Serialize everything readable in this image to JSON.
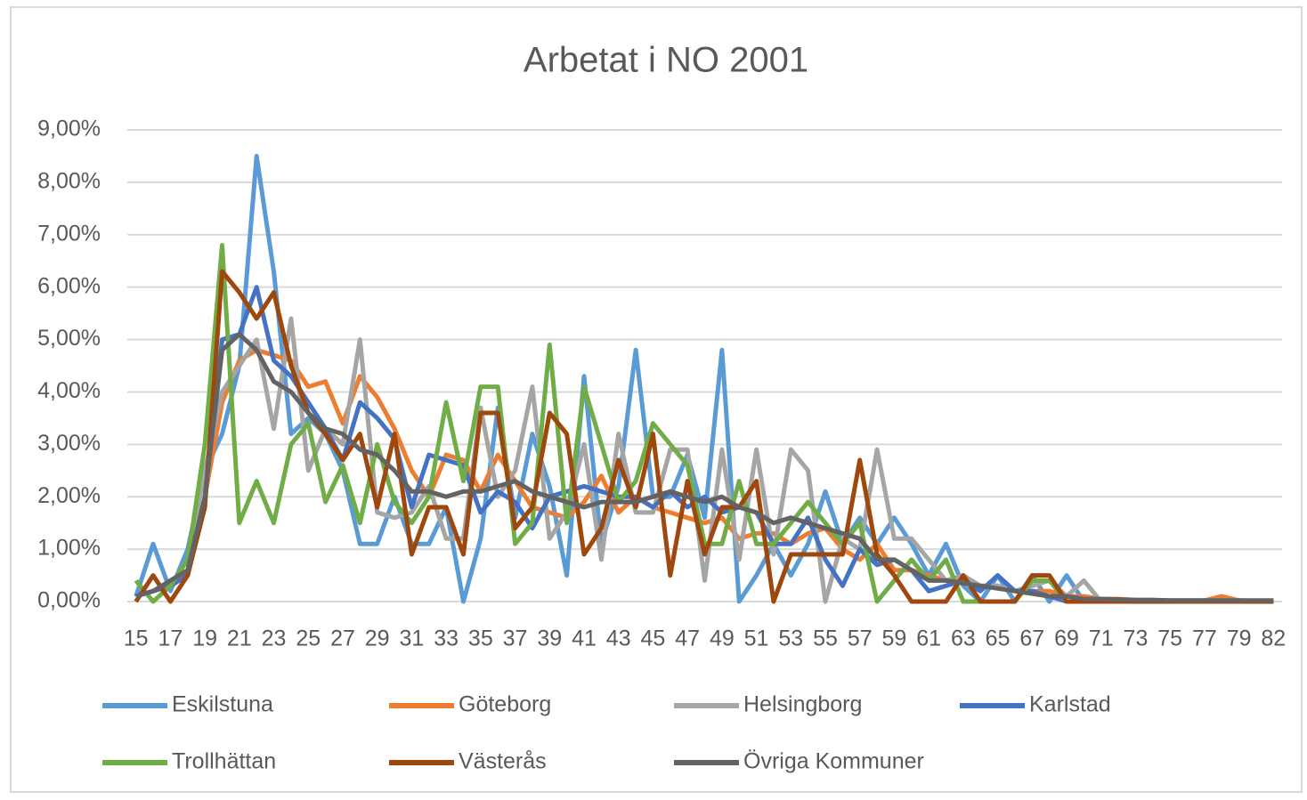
{
  "chart_data": {
    "type": "line",
    "title": "Arbetat i NO 2001",
    "categories": [
      "15",
      null,
      "17",
      null,
      "19",
      null,
      "21",
      null,
      "23",
      null,
      "25",
      null,
      "27",
      null,
      "29",
      null,
      "31",
      null,
      "33",
      null,
      "35",
      null,
      "37",
      null,
      "39",
      null,
      "41",
      null,
      "43",
      null,
      "45",
      null,
      "47",
      null,
      "49",
      null,
      "51",
      null,
      "53",
      null,
      "55",
      null,
      "57",
      null,
      "59",
      null,
      "61",
      null,
      "63",
      null,
      "65",
      null,
      "67",
      null,
      "69",
      null,
      "71",
      null,
      "73",
      null,
      "75",
      null,
      "77",
      null,
      "79",
      null,
      "82"
    ],
    "ylim": [
      0,
      9
    ],
    "yticks": [
      {
        "value": 0,
        "label": "0,00%"
      },
      {
        "value": 1,
        "label": "1,00%"
      },
      {
        "value": 2,
        "label": "2,00%"
      },
      {
        "value": 3,
        "label": "3,00%"
      },
      {
        "value": 4,
        "label": "4,00%"
      },
      {
        "value": 5,
        "label": "5,00%"
      },
      {
        "value": 6,
        "label": "6,00%"
      },
      {
        "value": 7,
        "label": "7,00%"
      },
      {
        "value": 8,
        "label": "8,00%"
      },
      {
        "value": 9,
        "label": "9,00%"
      }
    ],
    "grid": true,
    "legend": "bottom",
    "series": [
      {
        "name": "Eskilstuna",
        "color": "#5b9bd5",
        "values": [
          0.1,
          1.1,
          0.2,
          1.0,
          2.5,
          3.2,
          4.5,
          8.5,
          6.3,
          3.2,
          3.5,
          3.2,
          2.5,
          1.1,
          1.1,
          2.0,
          1.1,
          1.1,
          1.8,
          0.0,
          1.2,
          3.7,
          1.6,
          3.2,
          2.2,
          0.5,
          4.3,
          1.1,
          2.2,
          4.8,
          2.0,
          2.0,
          2.8,
          1.6,
          4.8,
          0.0,
          0.5,
          1.1,
          0.5,
          1.1,
          2.1,
          1.1,
          1.6,
          1.1,
          1.6,
          1.1,
          0.5,
          1.1,
          0.3,
          0.0,
          0.5,
          0.0,
          0.5,
          0.0,
          0.5,
          0.0,
          0,
          0,
          0,
          0,
          0,
          0,
          0,
          0,
          0,
          0,
          0
        ]
      },
      {
        "name": "Göteborg",
        "color": "#ed7d31",
        "values": [
          0.1,
          0.2,
          0.3,
          0.6,
          2.0,
          3.8,
          4.6,
          4.8,
          4.7,
          4.6,
          4.1,
          4.2,
          3.4,
          4.3,
          3.9,
          3.3,
          2.5,
          2.0,
          2.8,
          2.7,
          2.1,
          2.8,
          2.3,
          1.8,
          1.7,
          1.6,
          1.9,
          2.4,
          1.7,
          2.0,
          1.8,
          1.7,
          1.6,
          1.5,
          1.6,
          1.2,
          1.3,
          1.3,
          1.1,
          1.3,
          1.4,
          1.0,
          0.8,
          1.1,
          0.6,
          0.6,
          0.5,
          0.4,
          0.4,
          0.3,
          0.3,
          0.2,
          0.2,
          0.2,
          0.1,
          0.1,
          0.05,
          0.05,
          0.03,
          0.03,
          0.02,
          0.02,
          0.02,
          0.1,
          0.02,
          0.01,
          0.01
        ]
      },
      {
        "name": "Helsingborg",
        "color": "#a5a5a5",
        "values": [
          0.1,
          0.2,
          0.3,
          0.8,
          2.5,
          4.0,
          4.5,
          5.0,
          3.3,
          5.4,
          2.5,
          3.3,
          3.0,
          5.0,
          1.7,
          1.6,
          1.7,
          2.2,
          1.2,
          1.2,
          3.7,
          2.0,
          2.5,
          4.1,
          1.2,
          1.7,
          3.0,
          0.8,
          3.2,
          1.7,
          1.7,
          2.9,
          2.9,
          0.4,
          2.9,
          0.8,
          2.9,
          0.9,
          2.9,
          2.5,
          0.0,
          1.2,
          1.0,
          2.9,
          1.2,
          1.2,
          0.8,
          0.4,
          0.5,
          0.3,
          0.3,
          0.2,
          0.3,
          0.4,
          0.1,
          0.4,
          0,
          0,
          0,
          0,
          0,
          0,
          0,
          0,
          0,
          0,
          0
        ]
      },
      {
        "name": "Karlstad",
        "color": "#4472c4",
        "values": [
          0.1,
          0.2,
          0.3,
          0.5,
          2.0,
          5.0,
          5.1,
          6.0,
          4.6,
          4.3,
          3.8,
          3.3,
          2.7,
          3.8,
          3.5,
          3.1,
          1.8,
          2.8,
          2.7,
          2.6,
          1.7,
          2.1,
          1.9,
          1.4,
          2.0,
          2.1,
          2.2,
          2.1,
          2.0,
          2.0,
          1.8,
          2.1,
          1.8,
          2.0,
          1.7,
          1.8,
          1.7,
          1.1,
          1.1,
          1.6,
          0.8,
          0.3,
          1.0,
          0.7,
          0.8,
          0.6,
          0.2,
          0.3,
          0.4,
          0.2,
          0.5,
          0.2,
          0.2,
          0.1,
          0,
          0,
          0,
          0,
          0,
          0,
          0,
          0,
          0,
          0,
          0,
          0,
          0
        ]
      },
      {
        "name": "Trollhättan",
        "color": "#70ad47",
        "values": [
          0.4,
          0.0,
          0.3,
          0.8,
          3.0,
          6.8,
          1.5,
          2.3,
          1.5,
          3.0,
          3.4,
          1.9,
          2.6,
          1.5,
          3.0,
          1.9,
          1.5,
          2.0,
          3.8,
          2.3,
          4.1,
          4.1,
          1.1,
          1.5,
          4.9,
          1.5,
          4.1,
          3.0,
          1.9,
          2.3,
          3.4,
          3.0,
          2.6,
          1.1,
          1.1,
          2.3,
          1.1,
          1.1,
          1.5,
          1.9,
          1.5,
          1.1,
          1.5,
          0.0,
          0.4,
          0.8,
          0.4,
          0.8,
          0.0,
          0.0,
          0.0,
          0.0,
          0.4,
          0.4,
          0,
          0,
          0,
          0,
          0,
          0,
          0,
          0,
          0,
          0,
          0,
          0,
          0
        ]
      },
      {
        "name": "Västerås",
        "color": "#9e480e",
        "values": [
          0.0,
          0.5,
          0.0,
          0.5,
          1.8,
          6.3,
          5.9,
          5.4,
          5.9,
          4.5,
          3.6,
          3.2,
          2.7,
          3.2,
          1.8,
          3.2,
          0.9,
          1.8,
          1.8,
          0.9,
          3.6,
          3.6,
          1.4,
          1.8,
          3.6,
          3.2,
          0.9,
          1.4,
          2.7,
          1.8,
          3.2,
          0.5,
          2.3,
          0.9,
          1.8,
          1.8,
          2.3,
          0.0,
          0.9,
          0.9,
          0.9,
          0.9,
          2.7,
          0.9,
          0.5,
          0.0,
          0.0,
          0.0,
          0.5,
          0.0,
          0.0,
          0.0,
          0.5,
          0.5,
          0.0,
          0,
          0,
          0,
          0,
          0,
          0,
          0,
          0,
          0,
          0,
          0,
          0
        ]
      },
      {
        "name": "Övriga Kommuner",
        "color": "#636363",
        "values": [
          0.1,
          0.2,
          0.4,
          0.6,
          2.0,
          4.8,
          5.1,
          4.8,
          4.2,
          4.0,
          3.6,
          3.3,
          3.2,
          2.9,
          2.8,
          2.5,
          2.1,
          2.1,
          2.0,
          2.1,
          2.1,
          2.2,
          2.3,
          2.1,
          2.0,
          1.9,
          1.8,
          1.9,
          1.9,
          1.9,
          2.0,
          2.1,
          2.0,
          1.9,
          2.0,
          1.8,
          1.7,
          1.5,
          1.6,
          1.5,
          1.4,
          1.3,
          1.2,
          0.8,
          0.8,
          0.6,
          0.4,
          0.4,
          0.35,
          0.3,
          0.25,
          0.2,
          0.15,
          0.1,
          0.1,
          0.05,
          0.05,
          0.04,
          0.03,
          0.03,
          0.02,
          0.02,
          0.02,
          0.02,
          0.02,
          0.02,
          0.02
        ]
      }
    ]
  }
}
